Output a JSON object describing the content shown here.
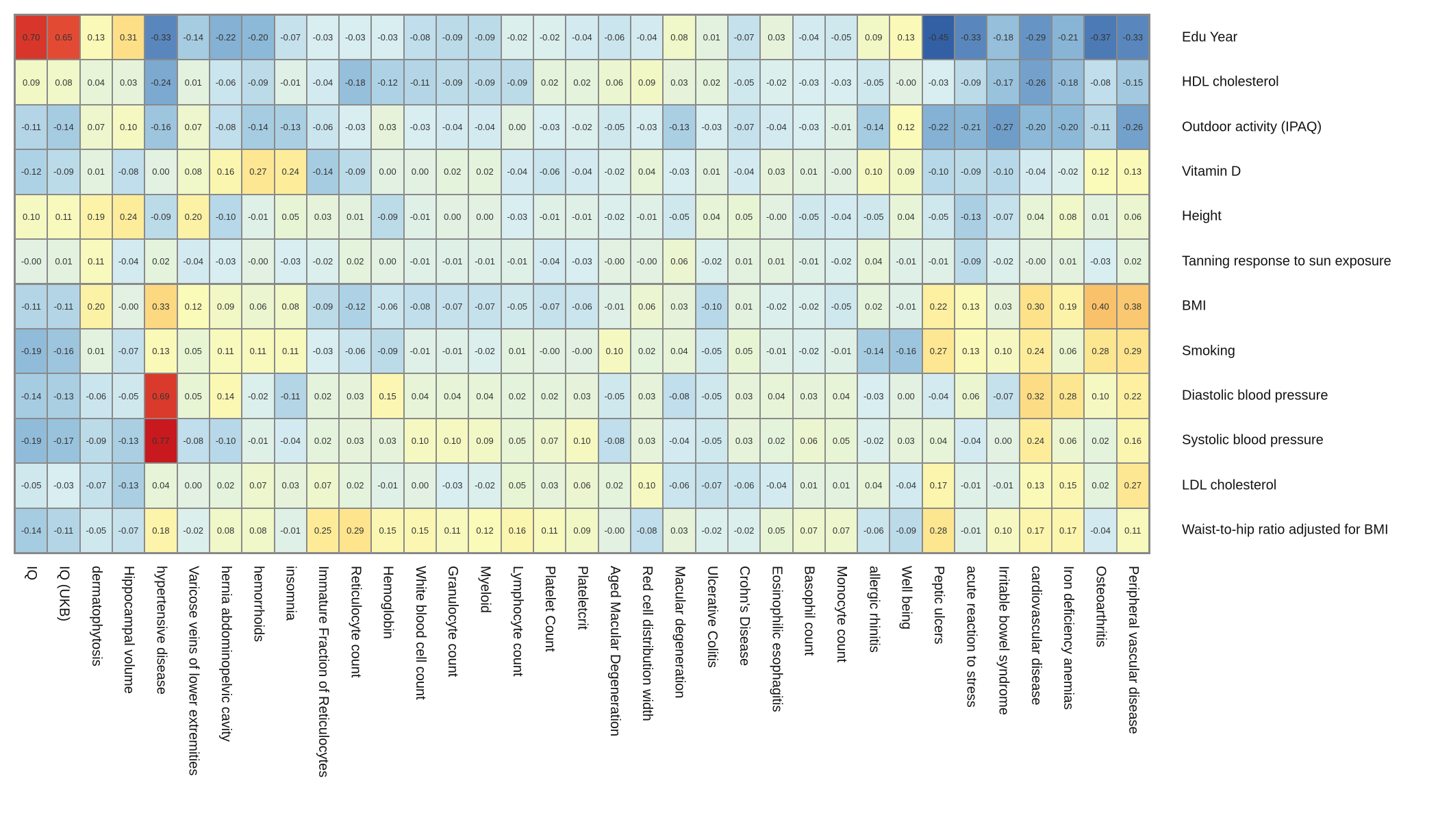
{
  "chart_data": {
    "type": "heatmap",
    "title": "",
    "legend": "none",
    "color_scale": {
      "low": "#3360a5",
      "mid": "#e3f2e4",
      "high": "#c8191e"
    },
    "rows": [
      "Edu Year",
      "HDL cholesterol",
      "Outdoor activity (IPAQ)",
      "Vitamin D",
      "Height",
      "Tanning response to sun exposure",
      "BMI",
      "Smoking",
      "Diastolic blood pressure",
      "Systolic blood pressure",
      "LDL cholesterol",
      "Waist-to-hip ratio adjusted for BMI"
    ],
    "columns": [
      "IQ",
      "IQ (UKB)",
      "dermatophytosis",
      "Hippocampal volume",
      "hypertensive disease",
      "Varicose veins of lower extremities",
      "hernia abdominopelvic cavity",
      "hemorrhoids",
      "insomnia",
      "Immature Fraction of Reticulocytes",
      "Reticulocyte count",
      "Hemoglobin",
      "White blood cell count",
      "Granulocyte count",
      "Myeloid",
      "Lymphocyte count",
      "Platelet Count",
      "Plateletcrit",
      "Aged Macular Degeneration",
      "Red cell distribution width",
      "Macular degeneration",
      "Ulcerative Colitis",
      "Crohn's Disease",
      "Eosinophilic esophagitis",
      "Basophil count",
      "Monocyte count",
      "allergic rhinitis",
      "Well being",
      "Peptic ulcers",
      "acute reaction to stress",
      "Irritable bowel syndrome",
      "cardiovascular disease",
      "Iron deficiency anemias",
      "Osteoarthritis",
      "Peripheral vascular disease"
    ],
    "values": [
      [
        "0.70",
        "0.65",
        "0.13",
        "0.31",
        "-0.33",
        "-0.14",
        "-0.22",
        "-0.20",
        "-0.07",
        "-0.03",
        "-0.03",
        "-0.03",
        "-0.08",
        "-0.09",
        "-0.09",
        "-0.02",
        "-0.02",
        "-0.04",
        "-0.06",
        "-0.04",
        "0.08",
        "0.01",
        "-0.07",
        "0.03",
        "-0.04",
        "-0.05",
        "0.09",
        "0.13",
        "-0.45",
        "-0.33",
        "-0.18",
        "-0.29",
        "-0.21",
        "-0.37",
        "-0.33"
      ],
      [
        "0.09",
        "0.08",
        "0.04",
        "0.03",
        "-0.24",
        "0.01",
        "-0.06",
        "-0.09",
        "-0.01",
        "-0.04",
        "-0.18",
        "-0.12",
        "-0.11",
        "-0.09",
        "-0.09",
        "-0.09",
        "0.02",
        "0.02",
        "0.06",
        "0.09",
        "0.03",
        "0.02",
        "-0.05",
        "-0.02",
        "-0.03",
        "-0.03",
        "-0.05",
        "-0.00",
        "-0.03",
        "-0.09",
        "-0.17",
        "-0.26",
        "-0.18",
        "-0.08",
        "-0.15"
      ],
      [
        "-0.11",
        "-0.14",
        "0.07",
        "0.10",
        "-0.16",
        "0.07",
        "-0.08",
        "-0.14",
        "-0.13",
        "-0.06",
        "-0.03",
        "0.03",
        "-0.03",
        "-0.04",
        "-0.04",
        "0.00",
        "-0.03",
        "-0.02",
        "-0.05",
        "-0.03",
        "-0.13",
        "-0.03",
        "-0.07",
        "-0.04",
        "-0.03",
        "-0.01",
        "-0.14",
        "0.12",
        "-0.22",
        "-0.21",
        "-0.27",
        "-0.20",
        "-0.20",
        "-0.11",
        "-0.26"
      ],
      [
        "-0.12",
        "-0.09",
        "0.01",
        "-0.08",
        "0.00",
        "0.08",
        "0.16",
        "0.27",
        "0.24",
        "-0.14",
        "-0.09",
        "0.00",
        "0.00",
        "0.02",
        "0.02",
        "-0.04",
        "-0.06",
        "-0.04",
        "-0.02",
        "0.04",
        "-0.03",
        "0.01",
        "-0.04",
        "0.03",
        "0.01",
        "-0.00",
        "0.10",
        "0.09",
        "-0.10",
        "-0.09",
        "-0.10",
        "-0.04",
        "-0.02",
        "0.12",
        "0.13"
      ],
      [
        "0.10",
        "0.11",
        "0.19",
        "0.24",
        "-0.09",
        "0.20",
        "-0.10",
        "-0.01",
        "0.05",
        "0.03",
        "0.01",
        "-0.09",
        "-0.01",
        "0.00",
        "0.00",
        "-0.03",
        "-0.01",
        "-0.01",
        "-0.02",
        "-0.01",
        "-0.05",
        "0.04",
        "0.05",
        "-0.00",
        "-0.05",
        "-0.04",
        "-0.05",
        "0.04",
        "-0.05",
        "-0.13",
        "-0.07",
        "0.04",
        "0.08",
        "0.01",
        "0.06"
      ],
      [
        "-0.00",
        "0.01",
        "0.11",
        "-0.04",
        "0.02",
        "-0.04",
        "-0.03",
        "-0.00",
        "-0.03",
        "-0.02",
        "0.02",
        "0.00",
        "-0.01",
        "-0.01",
        "-0.01",
        "-0.01",
        "-0.04",
        "-0.03",
        "-0.00",
        "-0.00",
        "0.06",
        "-0.02",
        "0.01",
        "0.01",
        "-0.01",
        "-0.02",
        "0.04",
        "-0.01",
        "-0.01",
        "-0.09",
        "-0.02",
        "-0.00",
        "0.01",
        "-0.03",
        "0.02"
      ],
      [
        "-0.11",
        "-0.11",
        "0.20",
        "-0.00",
        "0.33",
        "0.12",
        "0.09",
        "0.06",
        "0.08",
        "-0.09",
        "-0.12",
        "-0.06",
        "-0.08",
        "-0.07",
        "-0.07",
        "-0.05",
        "-0.07",
        "-0.06",
        "-0.01",
        "0.06",
        "0.03",
        "-0.10",
        "0.01",
        "-0.02",
        "-0.02",
        "-0.05",
        "0.02",
        "-0.01",
        "0.22",
        "0.13",
        "0.03",
        "0.30",
        "0.19",
        "0.40",
        "0.38"
      ],
      [
        "-0.19",
        "-0.16",
        "0.01",
        "-0.07",
        "0.13",
        "0.05",
        "0.11",
        "0.11",
        "0.11",
        "-0.03",
        "-0.06",
        "-0.09",
        "-0.01",
        "-0.01",
        "-0.02",
        "0.01",
        "-0.00",
        "-0.00",
        "0.10",
        "0.02",
        "0.04",
        "-0.05",
        "0.05",
        "-0.01",
        "-0.02",
        "-0.01",
        "-0.14",
        "-0.16",
        "0.27",
        "0.13",
        "0.10",
        "0.24",
        "0.06",
        "0.28",
        "0.29"
      ],
      [
        "-0.14",
        "-0.13",
        "-0.06",
        "-0.05",
        "0.69",
        "0.05",
        "0.14",
        "-0.02",
        "-0.11",
        "0.02",
        "0.03",
        "0.15",
        "0.04",
        "0.04",
        "0.04",
        "0.02",
        "0.02",
        "0.03",
        "-0.05",
        "0.03",
        "-0.08",
        "-0.05",
        "0.03",
        "0.04",
        "0.03",
        "0.04",
        "-0.03",
        "0.00",
        "-0.04",
        "0.06",
        "-0.07",
        "0.32",
        "0.28",
        "0.10",
        "0.22"
      ],
      [
        "-0.19",
        "-0.17",
        "-0.09",
        "-0.13",
        "0.77",
        "-0.08",
        "-0.10",
        "-0.01",
        "-0.04",
        "0.02",
        "0.03",
        "0.03",
        "0.10",
        "0.10",
        "0.09",
        "0.05",
        "0.07",
        "0.10",
        "-0.08",
        "0.03",
        "-0.04",
        "-0.05",
        "0.03",
        "0.02",
        "0.06",
        "0.05",
        "-0.02",
        "0.03",
        "0.04",
        "-0.04",
        "0.00",
        "0.24",
        "0.06",
        "0.02",
        "0.16"
      ],
      [
        "-0.05",
        "-0.03",
        "-0.07",
        "-0.13",
        "0.04",
        "0.00",
        "0.02",
        "0.07",
        "0.03",
        "0.07",
        "0.02",
        "-0.01",
        "0.00",
        "-0.03",
        "-0.02",
        "0.05",
        "0.03",
        "0.06",
        "0.02",
        "0.10",
        "-0.06",
        "-0.07",
        "-0.06",
        "-0.04",
        "0.01",
        "0.01",
        "0.04",
        "-0.04",
        "0.17",
        "-0.01",
        "-0.01",
        "0.13",
        "0.15",
        "0.02",
        "0.27"
      ],
      [
        "-0.14",
        "-0.11",
        "-0.05",
        "-0.07",
        "0.18",
        "-0.02",
        "0.08",
        "0.08",
        "-0.01",
        "0.25",
        "0.29",
        "0.15",
        "0.15",
        "0.11",
        "0.12",
        "0.16",
        "0.11",
        "0.09",
        "-0.00",
        "-0.08",
        "0.03",
        "-0.02",
        "-0.02",
        "0.05",
        "0.07",
        "0.07",
        "-0.06",
        "-0.09",
        "0.28",
        "-0.01",
        "0.10",
        "0.17",
        "0.17",
        "-0.04",
        "0.11"
      ]
    ]
  }
}
